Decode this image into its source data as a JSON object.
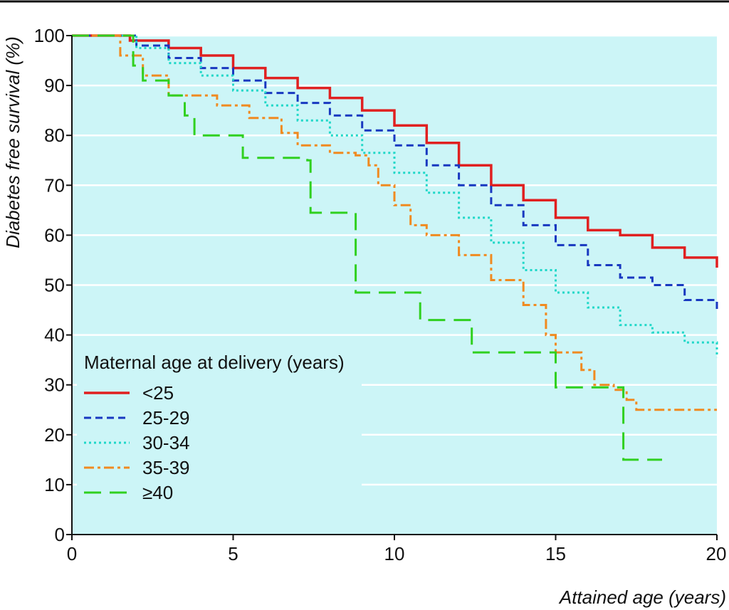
{
  "chart_data": {
    "type": "line",
    "subtype": "kaplan-meier step curves",
    "title": "",
    "xlabel": "Attained age (years)",
    "ylabel": "Diabetes free survival (%)",
    "xlim": [
      0,
      20
    ],
    "ylim": [
      0,
      100
    ],
    "x_ticks": [
      0,
      5,
      10,
      15,
      20
    ],
    "y_ticks": [
      0,
      10,
      20,
      30,
      40,
      50,
      60,
      70,
      80,
      90,
      100
    ],
    "grid": "horizontal",
    "background_color": "#ccf5f7",
    "legend": {
      "title": "Maternal age at delivery (years)",
      "placement": "bottom-left"
    },
    "series": [
      {
        "name": "<25",
        "color": "#e02020",
        "dash": "solid",
        "points": [
          [
            0,
            100
          ],
          [
            1.5,
            100
          ],
          [
            1.8,
            99
          ],
          [
            3,
            97.5
          ],
          [
            4,
            96
          ],
          [
            5,
            93.5
          ],
          [
            6,
            91.5
          ],
          [
            7,
            89.5
          ],
          [
            8,
            87.5
          ],
          [
            9,
            85
          ],
          [
            10,
            82
          ],
          [
            11,
            78.5
          ],
          [
            12,
            74
          ],
          [
            13,
            70
          ],
          [
            14,
            67
          ],
          [
            15,
            63.5
          ],
          [
            16,
            61
          ],
          [
            17,
            60
          ],
          [
            18,
            57.5
          ],
          [
            19,
            55.5
          ],
          [
            20,
            53.5
          ]
        ]
      },
      {
        "name": "25-29",
        "color": "#1838c0",
        "dash": "dashed",
        "points": [
          [
            0,
            100
          ],
          [
            1.3,
            100
          ],
          [
            2,
            98
          ],
          [
            3,
            95.5
          ],
          [
            4,
            93.5
          ],
          [
            5,
            91
          ],
          [
            6,
            88.5
          ],
          [
            7,
            86.5
          ],
          [
            8,
            84
          ],
          [
            9,
            81
          ],
          [
            10,
            78
          ],
          [
            11,
            74
          ],
          [
            12,
            70
          ],
          [
            13,
            66
          ],
          [
            14,
            62
          ],
          [
            15,
            58
          ],
          [
            16,
            54
          ],
          [
            17,
            51.5
          ],
          [
            18,
            50
          ],
          [
            19,
            47
          ],
          [
            20,
            45
          ]
        ]
      },
      {
        "name": "30-34",
        "color": "#20d8c8",
        "dash": "dotted",
        "points": [
          [
            0,
            100
          ],
          [
            1.3,
            100
          ],
          [
            2,
            97.5
          ],
          [
            3,
            94.5
          ],
          [
            4,
            92
          ],
          [
            5,
            89
          ],
          [
            6,
            86
          ],
          [
            7,
            83
          ],
          [
            8,
            80
          ],
          [
            9,
            76.5
          ],
          [
            10,
            72.5
          ],
          [
            11,
            68.5
          ],
          [
            12,
            63.5
          ],
          [
            13,
            58.5
          ],
          [
            14,
            53
          ],
          [
            15,
            48.5
          ],
          [
            16,
            45.5
          ],
          [
            17,
            42
          ],
          [
            18,
            40.5
          ],
          [
            19,
            38.5
          ],
          [
            20,
            35.5
          ]
        ]
      },
      {
        "name": "35-39",
        "color": "#f08a20",
        "dash": "dash-dot",
        "points": [
          [
            0,
            100
          ],
          [
            1.2,
            100
          ],
          [
            1.5,
            96
          ],
          [
            2.2,
            92
          ],
          [
            3,
            88
          ],
          [
            4.5,
            86
          ],
          [
            5.5,
            83.5
          ],
          [
            6.5,
            80.5
          ],
          [
            7,
            78
          ],
          [
            8,
            76.5
          ],
          [
            8.8,
            76
          ],
          [
            9.2,
            74
          ],
          [
            9.5,
            70
          ],
          [
            10,
            66
          ],
          [
            10.5,
            62
          ],
          [
            11,
            60
          ],
          [
            12,
            56
          ],
          [
            13,
            51
          ],
          [
            14,
            46
          ],
          [
            14.7,
            40
          ],
          [
            15,
            36.5
          ],
          [
            15.8,
            33
          ],
          [
            16.2,
            30
          ],
          [
            16.8,
            29
          ],
          [
            17.2,
            27
          ],
          [
            17.5,
            25
          ],
          [
            20,
            25
          ]
        ]
      },
      {
        "name": "≥40",
        "color": "#30d020",
        "dash": "long-dash",
        "points": [
          [
            0,
            100
          ],
          [
            1.7,
            100
          ],
          [
            1.9,
            94
          ],
          [
            2.2,
            91
          ],
          [
            3,
            88
          ],
          [
            3.5,
            84
          ],
          [
            3.8,
            80
          ],
          [
            5.3,
            75.5
          ],
          [
            7.3,
            75
          ],
          [
            7.4,
            64.5
          ],
          [
            8.7,
            64.5
          ],
          [
            8.8,
            48.5
          ],
          [
            10.7,
            48.5
          ],
          [
            10.8,
            43
          ],
          [
            12.3,
            43
          ],
          [
            12.4,
            36.5
          ],
          [
            14.9,
            36.5
          ],
          [
            15,
            29.5
          ],
          [
            17,
            29.5
          ],
          [
            17.1,
            15
          ],
          [
            18.3,
            15
          ]
        ]
      }
    ]
  }
}
